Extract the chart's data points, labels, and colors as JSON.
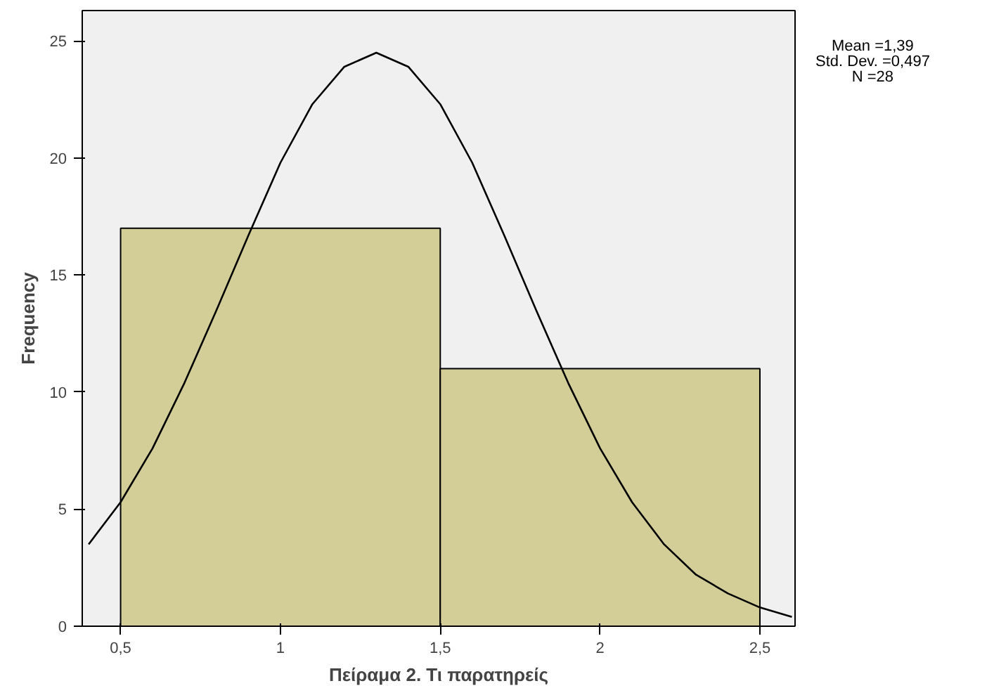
{
  "chart_data": {
    "type": "histogram",
    "xlabel": "Πείραμα 2. Τι παρατηρείς",
    "ylabel": "Frequency",
    "bins": [
      0.5,
      1.5,
      2.5
    ],
    "values": [
      17,
      11
    ],
    "color": "#d3ce97",
    "series": [
      {
        "type": "line",
        "color": "#000000",
        "x": [
          0.4,
          0.5,
          0.6,
          0.7,
          0.8,
          0.9,
          1.0,
          1.1,
          1.2,
          1.3,
          1.4,
          1.5,
          1.6,
          1.7,
          1.8,
          1.9,
          2.0,
          2.1,
          2.2,
          2.3,
          2.4,
          2.5,
          2.6
        ],
        "values": [
          3.5,
          5.3,
          7.6,
          10.4,
          13.5,
          16.7,
          19.8,
          22.3,
          23.9,
          24.5,
          23.9,
          22.3,
          19.8,
          16.7,
          13.5,
          10.4,
          7.6,
          5.3,
          3.5,
          2.2,
          1.4,
          0.8,
          0.4
        ]
      }
    ],
    "xlim": [
      0.38,
      2.61
    ],
    "ylim": [
      0,
      26.3
    ],
    "xticks": [
      {
        "value": 0.5,
        "label": "0,5"
      },
      1,
      {
        "value": 1.5,
        "label": "1,5"
      },
      2,
      {
        "value": 2.5,
        "label": "2,5"
      }
    ],
    "yticks": [
      0,
      5,
      10,
      15,
      20,
      25
    ],
    "grid": false,
    "annotations": [
      "Mean =1,39",
      "Std. Dev. =0,497",
      "N =28"
    ]
  }
}
